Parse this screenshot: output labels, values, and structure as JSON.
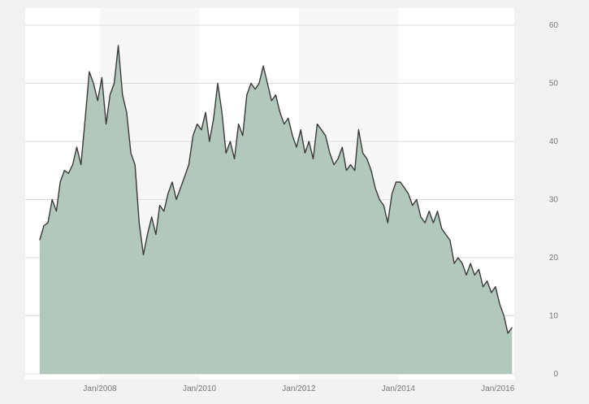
{
  "chart_data": {
    "type": "area",
    "title": "",
    "xlabel": "",
    "ylabel": "",
    "y_axis_position": "right",
    "grid": true,
    "legend": "none",
    "xlim": [
      "2006-07-01",
      "2016-05-01"
    ],
    "ylim": [
      0,
      60
    ],
    "y_ticks": [
      "0",
      "10",
      "20",
      "30",
      "40",
      "50",
      "60"
    ],
    "x_ticks": [
      {
        "label": "Jan/2008",
        "date": "2008-01-01"
      },
      {
        "label": "Jan/2010",
        "date": "2010-01-01"
      },
      {
        "label": "Jan/2012",
        "date": "2012-01-01"
      },
      {
        "label": "Jan/2014",
        "date": "2014-01-01"
      },
      {
        "label": "Jan/2016",
        "date": "2016-01-01"
      }
    ],
    "shaded_bands": [
      {
        "from": "2008-01-01",
        "to": "2010-01-01"
      },
      {
        "from": "2012-01-01",
        "to": "2014-01-01"
      }
    ],
    "colors": {
      "fill": "#b3c8bd",
      "line": "#3a3a3a",
      "grid": "#dcdcdc",
      "band": "#f7f7f7",
      "background": "#ffffff",
      "tick_text": "#777777"
    },
    "series": [
      {
        "x": [
          "2006-10-15",
          "2006-11-15",
          "2006-12-15",
          "2007-01-15",
          "2007-02-15",
          "2007-03-15",
          "2007-04-15",
          "2007-05-15",
          "2007-06-15",
          "2007-07-15",
          "2007-08-15",
          "2007-09-15",
          "2007-10-15",
          "2007-11-15",
          "2007-12-15",
          "2008-01-15",
          "2008-02-15",
          "2008-03-15",
          "2008-04-15",
          "2008-05-15",
          "2008-06-15",
          "2008-07-15",
          "2008-08-15",
          "2008-09-15",
          "2008-10-15",
          "2008-11-15",
          "2008-12-15",
          "2009-01-15",
          "2009-02-15",
          "2009-03-15",
          "2009-04-15",
          "2009-05-15",
          "2009-06-15",
          "2009-07-15",
          "2009-08-15",
          "2009-09-15",
          "2009-10-15",
          "2009-11-15",
          "2009-12-15",
          "2010-01-15",
          "2010-02-15",
          "2010-03-15",
          "2010-04-15",
          "2010-05-15",
          "2010-06-15",
          "2010-07-15",
          "2010-08-15",
          "2010-09-15",
          "2010-10-15",
          "2010-11-15",
          "2010-12-15",
          "2011-01-15",
          "2011-02-15",
          "2011-03-15",
          "2011-04-15",
          "2011-05-15",
          "2011-06-15",
          "2011-07-15",
          "2011-08-15",
          "2011-09-15",
          "2011-10-15",
          "2011-11-15",
          "2011-12-15",
          "2012-01-15",
          "2012-02-15",
          "2012-03-15",
          "2012-04-15",
          "2012-05-15",
          "2012-06-15",
          "2012-07-15",
          "2012-08-15",
          "2012-09-15",
          "2012-10-15",
          "2012-11-15",
          "2012-12-15",
          "2013-01-15",
          "2013-02-15",
          "2013-03-15",
          "2013-04-15",
          "2013-05-15",
          "2013-06-15",
          "2013-07-15",
          "2013-08-15",
          "2013-09-15",
          "2013-10-15",
          "2013-11-15",
          "2013-12-15",
          "2014-01-15",
          "2014-02-15",
          "2014-03-15",
          "2014-04-15",
          "2014-05-15",
          "2014-06-15",
          "2014-07-15",
          "2014-08-15",
          "2014-09-15",
          "2014-10-15",
          "2014-11-15",
          "2014-12-15",
          "2015-01-15",
          "2015-02-15",
          "2015-03-15",
          "2015-04-15",
          "2015-05-15",
          "2015-06-15",
          "2015-07-15",
          "2015-08-15",
          "2015-09-15",
          "2015-10-15",
          "2015-11-15",
          "2015-12-15",
          "2016-01-15",
          "2016-02-15",
          "2016-03-15",
          "2016-04-15"
        ],
        "values": [
          23,
          25.5,
          26,
          30,
          28,
          33,
          35,
          34.5,
          36,
          39,
          36,
          44,
          52,
          50,
          47,
          51,
          43,
          48,
          50,
          56.5,
          48,
          45,
          38,
          36,
          26,
          20.5,
          24,
          27,
          24,
          29,
          28,
          31,
          33,
          30,
          32,
          34,
          36,
          41,
          43,
          42,
          45,
          40,
          44,
          50,
          45,
          38,
          40,
          37,
          43,
          41,
          48,
          50,
          49,
          50,
          53,
          50,
          47,
          48,
          45,
          43,
          44,
          41,
          39,
          42,
          38,
          40,
          37,
          43,
          42,
          41,
          38,
          36,
          37,
          39,
          35,
          36,
          35,
          42,
          38,
          37,
          35,
          32,
          30,
          29,
          26,
          31,
          33,
          33,
          32,
          31,
          29,
          30,
          27,
          26,
          28,
          26,
          28,
          25,
          24,
          23,
          19,
          20,
          19,
          17,
          19,
          17,
          18,
          15,
          16,
          14,
          15,
          12,
          10,
          7,
          8
        ]
      }
    ]
  }
}
